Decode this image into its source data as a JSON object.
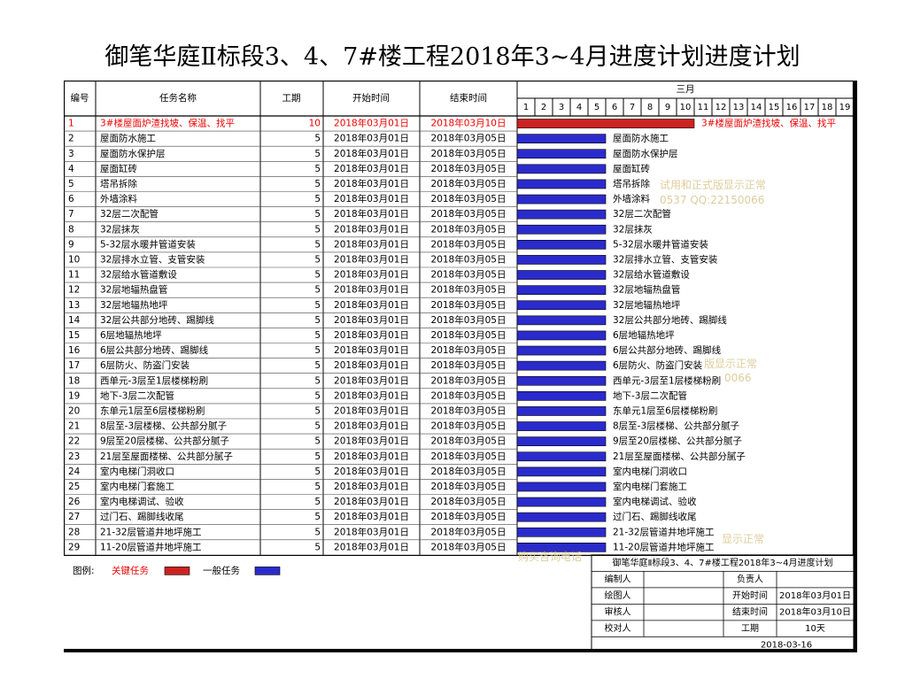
{
  "title": "御笔华庭Ⅱ标段3、4、7#楼工程2018年3~4月进度计划进度计划",
  "columns": {
    "no": "编号",
    "name": "任务名称",
    "duration": "工期",
    "start": "开始时间",
    "end": "结束时间"
  },
  "timeline": {
    "month": "三月",
    "days": [
      "1",
      "2",
      "3",
      "4",
      "5",
      "6",
      "7",
      "8",
      "9",
      "10",
      "11",
      "12",
      "13",
      "14",
      "15",
      "16",
      "17",
      "18",
      "19"
    ]
  },
  "legend": {
    "label": "图例:",
    "critical": "关键任务",
    "normal": "一般任务"
  },
  "colors": {
    "critical": "#cc2222",
    "normal": "#2b2bcc",
    "critical_text": "#ee0000"
  },
  "chart_data": {
    "type": "gantt",
    "x_axis": {
      "unit": "day",
      "month": "三月",
      "range": [
        1,
        19
      ]
    },
    "tasks": [
      {
        "no": "1",
        "name": "3#楼屋面炉渣找坡、保温、找平",
        "duration": "10",
        "start": "2018年03月01日",
        "end": "2018年03月10日",
        "start_day": 1,
        "end_day": 10,
        "critical": true
      },
      {
        "no": "2",
        "name": "屋面防水施工",
        "duration": "5",
        "start": "2018年03月01日",
        "end": "2018年03月05日",
        "start_day": 1,
        "end_day": 5,
        "critical": false
      },
      {
        "no": "3",
        "name": "屋面防水保护层",
        "duration": "5",
        "start": "2018年03月01日",
        "end": "2018年03月05日",
        "start_day": 1,
        "end_day": 5,
        "critical": false
      },
      {
        "no": "4",
        "name": "屋面缸砖",
        "duration": "5",
        "start": "2018年03月01日",
        "end": "2018年03月05日",
        "start_day": 1,
        "end_day": 5,
        "critical": false
      },
      {
        "no": "5",
        "name": "塔吊拆除",
        "duration": "5",
        "start": "2018年03月01日",
        "end": "2018年03月05日",
        "start_day": 1,
        "end_day": 5,
        "critical": false
      },
      {
        "no": "6",
        "name": "外墙涂料",
        "duration": "5",
        "start": "2018年03月01日",
        "end": "2018年03月05日",
        "start_day": 1,
        "end_day": 5,
        "critical": false
      },
      {
        "no": "7",
        "name": "32层二次配管",
        "duration": "5",
        "start": "2018年03月01日",
        "end": "2018年03月05日",
        "start_day": 1,
        "end_day": 5,
        "critical": false
      },
      {
        "no": "8",
        "name": "32层抹灰",
        "duration": "5",
        "start": "2018年03月01日",
        "end": "2018年03月05日",
        "start_day": 1,
        "end_day": 5,
        "critical": false
      },
      {
        "no": "9",
        "name": "5-32层水暖井管道安装",
        "duration": "5",
        "start": "2018年03月01日",
        "end": "2018年03月05日",
        "start_day": 1,
        "end_day": 5,
        "critical": false
      },
      {
        "no": "10",
        "name": "32层排水立管、支管安装",
        "duration": "5",
        "start": "2018年03月01日",
        "end": "2018年03月05日",
        "start_day": 1,
        "end_day": 5,
        "critical": false
      },
      {
        "no": "11",
        "name": "32层给水管道敷设",
        "duration": "5",
        "start": "2018年03月01日",
        "end": "2018年03月05日",
        "start_day": 1,
        "end_day": 5,
        "critical": false
      },
      {
        "no": "12",
        "name": "32层地辐热盘管",
        "duration": "5",
        "start": "2018年03月01日",
        "end": "2018年03月05日",
        "start_day": 1,
        "end_day": 5,
        "critical": false
      },
      {
        "no": "13",
        "name": "32层地辐热地坪",
        "duration": "5",
        "start": "2018年03月01日",
        "end": "2018年03月05日",
        "start_day": 1,
        "end_day": 5,
        "critical": false
      },
      {
        "no": "14",
        "name": "32层公共部分地砖、踢脚线",
        "duration": "5",
        "start": "2018年03月01日",
        "end": "2018年03月05日",
        "start_day": 1,
        "end_day": 5,
        "critical": false
      },
      {
        "no": "15",
        "name": "6层地辐热地坪",
        "duration": "5",
        "start": "2018年03月01日",
        "end": "2018年03月05日",
        "start_day": 1,
        "end_day": 5,
        "critical": false
      },
      {
        "no": "16",
        "name": "6层公共部分地砖、踢脚线",
        "duration": "5",
        "start": "2018年03月01日",
        "end": "2018年03月05日",
        "start_day": 1,
        "end_day": 5,
        "critical": false
      },
      {
        "no": "17",
        "name": "6层防火、防盗门安装",
        "duration": "5",
        "start": "2018年03月01日",
        "end": "2018年03月05日",
        "start_day": 1,
        "end_day": 5,
        "critical": false
      },
      {
        "no": "18",
        "name": "西单元-3层至1层楼梯粉刷",
        "duration": "5",
        "start": "2018年03月01日",
        "end": "2018年03月05日",
        "start_day": 1,
        "end_day": 5,
        "critical": false
      },
      {
        "no": "19",
        "name": "地下-3层二次配管",
        "duration": "5",
        "start": "2018年03月01日",
        "end": "2018年03月05日",
        "start_day": 1,
        "end_day": 5,
        "critical": false
      },
      {
        "no": "20",
        "name": "东单元1层至6层楼梯粉刷",
        "duration": "5",
        "start": "2018年03月01日",
        "end": "2018年03月05日",
        "start_day": 1,
        "end_day": 5,
        "critical": false
      },
      {
        "no": "21",
        "name": "8层至-3层楼梯、公共部分腻子",
        "duration": "5",
        "start": "2018年03月01日",
        "end": "2018年03月05日",
        "start_day": 1,
        "end_day": 5,
        "critical": false
      },
      {
        "no": "22",
        "name": "9层至20层楼梯、公共部分腻子",
        "duration": "5",
        "start": "2018年03月01日",
        "end": "2018年03月05日",
        "start_day": 1,
        "end_day": 5,
        "critical": false
      },
      {
        "no": "23",
        "name": "21层至屋面楼梯、公共部分腻子",
        "duration": "5",
        "start": "2018年03月01日",
        "end": "2018年03月05日",
        "start_day": 1,
        "end_day": 5,
        "critical": false
      },
      {
        "no": "24",
        "name": "室内电梯门洞收口",
        "duration": "5",
        "start": "2018年03月01日",
        "end": "2018年03月05日",
        "start_day": 1,
        "end_day": 5,
        "critical": false
      },
      {
        "no": "25",
        "name": "室内电梯门套施工",
        "duration": "5",
        "start": "2018年03月01日",
        "end": "2018年03月05日",
        "start_day": 1,
        "end_day": 5,
        "critical": false
      },
      {
        "no": "26",
        "name": "室内电梯调试、验收",
        "duration": "5",
        "start": "2018年03月01日",
        "end": "2018年03月05日",
        "start_day": 1,
        "end_day": 5,
        "critical": false
      },
      {
        "no": "27",
        "name": "过门石、踢脚线收尾",
        "duration": "5",
        "start": "2018年03月01日",
        "end": "2018年03月05日",
        "start_day": 1,
        "end_day": 5,
        "critical": false
      },
      {
        "no": "28",
        "name": "21-32层管道井地坪施工",
        "duration": "5",
        "start": "2018年03月01日",
        "end": "2018年03月05日",
        "start_day": 1,
        "end_day": 5,
        "critical": false
      },
      {
        "no": "29",
        "name": "11-20层管道井地坪施工",
        "duration": "5",
        "start": "2018年03月01日",
        "end": "2018年03月05日",
        "start_day": 1,
        "end_day": 5,
        "critical": false
      }
    ]
  },
  "info": {
    "title": "御笔华庭Ⅱ标段3、4、7#楼工程2018年3~4月进度计划",
    "rows": [
      [
        "编制人",
        "",
        "负责人",
        ""
      ],
      [
        "绘图人",
        "",
        "开始时间",
        "2018年03月01日"
      ],
      [
        "审核人",
        "",
        "结束时间",
        "2018年03月10日"
      ],
      [
        "校对人",
        "",
        "工期",
        "10天"
      ]
    ],
    "date": "2018-03-16"
  },
  "watermark": [
    "试用和正式版显示正常",
    "0537 QQ:22150066",
    "版显示正常",
    "0066",
    "显示正常",
    "购买咨询电话"
  ]
}
